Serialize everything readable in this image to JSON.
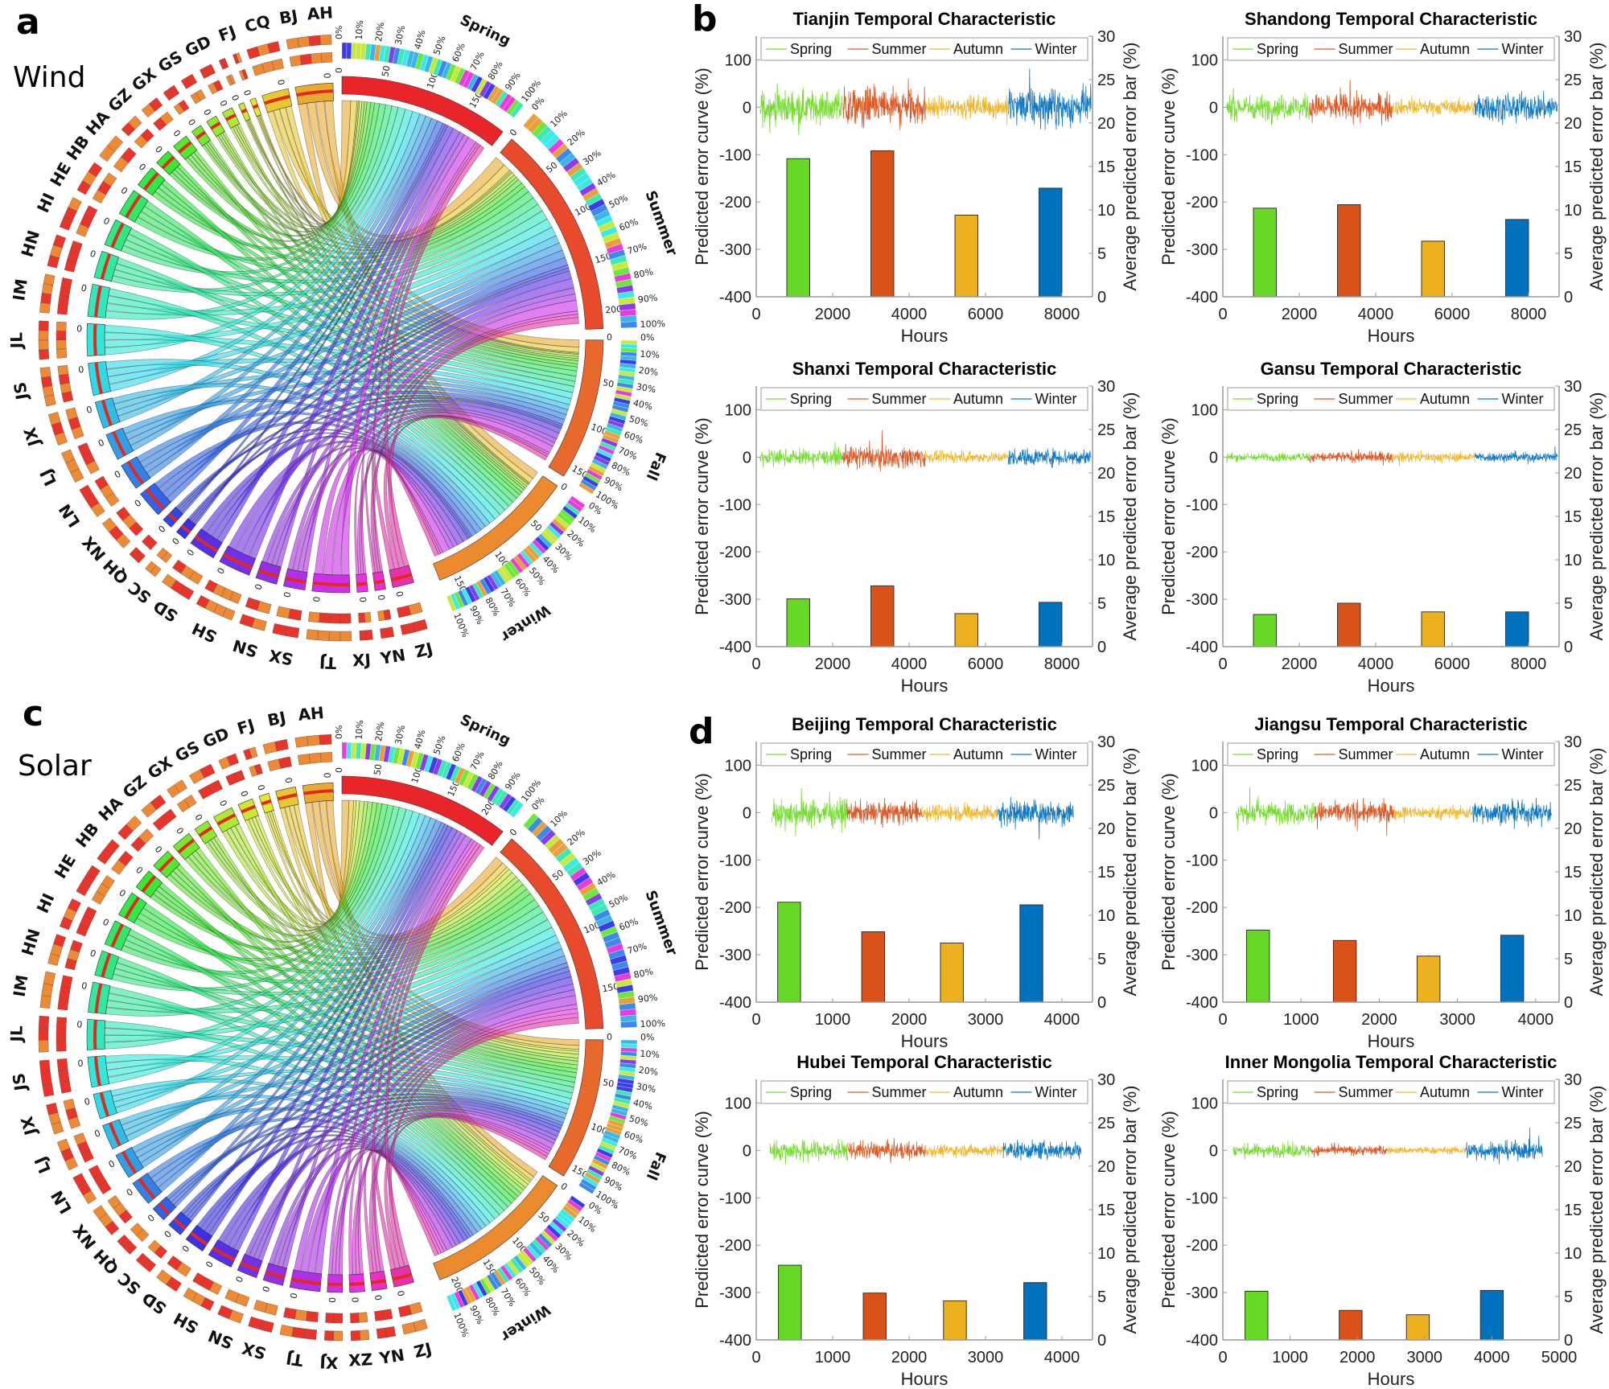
{
  "panels": {
    "a": "a",
    "b": "b",
    "c": "c",
    "d": "d"
  },
  "chord_diagrams": [
    {
      "name": "Wind",
      "regions": [
        "AH",
        "BJ",
        "CQ",
        "FJ",
        "GD",
        "GS",
        "GX",
        "GZ",
        "HA",
        "HB",
        "HE",
        "HI",
        "HN",
        "IM",
        "JL",
        "JS",
        "JX",
        "LJ",
        "LN",
        "NX",
        "QH",
        "SC",
        "SD",
        "SH",
        "SN",
        "SX",
        "TJ",
        "XJ",
        "YN",
        "ZJ"
      ],
      "region_weights": [
        7,
        5,
        1,
        1,
        2,
        2,
        2,
        3,
        3,
        4,
        5,
        5,
        5,
        6,
        6,
        6,
        5,
        5,
        5,
        5,
        2,
        2,
        5,
        6,
        4,
        4,
        7,
        2,
        2,
        4
      ],
      "region_tick_label": "0",
      "seasons": [
        {
          "label": "Spring",
          "scale_max": 190,
          "ticks": [
            "0",
            "50",
            "100",
            "150"
          ]
        },
        {
          "label": "Summer",
          "scale_max": 215,
          "ticks": [
            "0",
            "50",
            "100",
            "150",
            "200"
          ]
        },
        {
          "label": "Fall",
          "scale_max": 160,
          "ticks": [
            "0",
            "50",
            "100",
            "150"
          ]
        },
        {
          "label": "Winter",
          "scale_max": 165,
          "ticks": [
            "0",
            "50",
            "100",
            "150"
          ]
        }
      ],
      "percent_ticks": [
        "0%",
        "10%",
        "20%",
        "30%",
        "40%",
        "50%",
        "60%",
        "70%",
        "80%",
        "90%",
        "100%"
      ]
    },
    {
      "name": "Solar",
      "regions": [
        "AH",
        "BJ",
        "FJ",
        "GD",
        "GS",
        "GX",
        "GZ",
        "HA",
        "HB",
        "HE",
        "HI",
        "HN",
        "IM",
        "JL",
        "JS",
        "JX",
        "LJ",
        "LN",
        "NX",
        "QH",
        "SC",
        "SD",
        "SH",
        "SN",
        "SX",
        "TJ",
        "XJ",
        "XZ",
        "YN",
        "ZJ"
      ],
      "region_weights": [
        6,
        4,
        2,
        3,
        4,
        3,
        4,
        4,
        4,
        5,
        5,
        5,
        6,
        6,
        6,
        5,
        5,
        5,
        5,
        3,
        3,
        4,
        5,
        4,
        4,
        6,
        3,
        3,
        3,
        4
      ],
      "region_tick_label": "0",
      "seasons": [
        {
          "label": "Spring",
          "scale_max": 230,
          "ticks": [
            "0",
            "50",
            "100",
            "150",
            "200"
          ]
        },
        {
          "label": "Summer",
          "scale_max": 180,
          "ticks": [
            "0",
            "50",
            "100",
            "150"
          ]
        },
        {
          "label": "Fall",
          "scale_max": 160,
          "ticks": [
            "0",
            "50",
            "100",
            "150"
          ]
        },
        {
          "label": "Winter",
          "scale_max": 215,
          "ticks": [
            "0",
            "50",
            "100",
            "150",
            "200"
          ]
        }
      ],
      "percent_ticks": [
        "0%",
        "10%",
        "20%",
        "30%",
        "40%",
        "50%",
        "60%",
        "70%",
        "80%",
        "90%",
        "100%"
      ]
    }
  ],
  "colors": {
    "Spring": "#66d926",
    "Summer": "#d95319",
    "Autumn": "#edb120",
    "Winter": "#0072bd"
  },
  "chart_data": [
    {
      "type": "bar+line",
      "title": "Tianjin Temporal Characteristic",
      "xlabel": "Hours",
      "ylabel_left": "Predicted error curve (%)",
      "ylabel_right": "Average predicted error bar (%)",
      "xlim": [
        0,
        8800
      ],
      "xticks": [
        "0",
        "2000",
        "4000",
        "6000",
        "8000"
      ],
      "ylim_left": [
        -400,
        150
      ],
      "yticks_left": [
        "-400",
        "-300",
        "-200",
        "-100",
        "0",
        "100"
      ],
      "ylim_right": [
        0,
        30
      ],
      "yticks_right": [
        "0",
        "5",
        "10",
        "15",
        "20",
        "25",
        "30"
      ],
      "legend": [
        "Spring",
        "Summer",
        "Autumn",
        "Winter"
      ],
      "legend_position": "top",
      "curve_x_range": [
        100,
        8760
      ],
      "curve_amplitude": [
        55,
        65,
        35,
        60
      ],
      "bar_x": [
        1100,
        3300,
        5500,
        7700
      ],
      "bar_values": [
        15.9,
        16.8,
        9.4,
        12.5
      ]
    },
    {
      "type": "bar+line",
      "title": "Shandong Temporal Characteristic",
      "xlabel": "Hours",
      "ylabel_left": "Predicted error curve (%)",
      "ylabel_right": "Average predicted error bar (%)",
      "xlim": [
        0,
        8800
      ],
      "xticks": [
        "0",
        "2000",
        "4000",
        "6000",
        "8000"
      ],
      "ylim_left": [
        -400,
        150
      ],
      "yticks_left": [
        "-400",
        "-300",
        "-200",
        "-100",
        "0",
        "100"
      ],
      "ylim_right": [
        0,
        30
      ],
      "yticks_right": [
        "0",
        "5",
        "10",
        "15",
        "20",
        "25",
        "30"
      ],
      "legend": [
        "Spring",
        "Summer",
        "Autumn",
        "Winter"
      ],
      "legend_position": "top",
      "curve_x_range": [
        100,
        8760
      ],
      "curve_amplitude": [
        40,
        45,
        25,
        45
      ],
      "bar_x": [
        1100,
        3300,
        5500,
        7700
      ],
      "bar_values": [
        10.2,
        10.6,
        6.4,
        8.9
      ]
    },
    {
      "type": "bar+line",
      "title": "Shanxi Temporal Characteristic",
      "xlabel": "Hours",
      "ylabel_left": "Predicted error curve (%)",
      "ylabel_right": "Average predicted error bar (%)",
      "xlim": [
        0,
        8800
      ],
      "xticks": [
        "0",
        "2000",
        "4000",
        "6000",
        "8000"
      ],
      "ylim_left": [
        -400,
        150
      ],
      "yticks_left": [
        "-400",
        "-300",
        "-200",
        "-100",
        "0",
        "100"
      ],
      "ylim_right": [
        0,
        30
      ],
      "yticks_right": [
        "0",
        "5",
        "10",
        "15",
        "20",
        "25",
        "30"
      ],
      "legend": [
        "Spring",
        "Summer",
        "Autumn",
        "Winter"
      ],
      "legend_position": "top",
      "curve_x_range": [
        100,
        8760
      ],
      "curve_amplitude": [
        25,
        35,
        18,
        28
      ],
      "bar_x": [
        1100,
        3300,
        5500,
        7700
      ],
      "bar_values": [
        5.5,
        7.0,
        3.8,
        5.1
      ]
    },
    {
      "type": "bar+line",
      "title": "Gansu Temporal Characteristic",
      "xlabel": "Hours",
      "ylabel_left": "Predicted error curve (%)",
      "ylabel_right": "Average predicted error bar (%)",
      "xlim": [
        0,
        8800
      ],
      "xticks": [
        "0",
        "2000",
        "4000",
        "6000",
        "8000"
      ],
      "ylim_left": [
        -400,
        150
      ],
      "yticks_left": [
        "-400",
        "-300",
        "-200",
        "-100",
        "0",
        "100"
      ],
      "ylim_right": [
        0,
        30
      ],
      "yticks_right": [
        "0",
        "5",
        "10",
        "15",
        "20",
        "25",
        "30"
      ],
      "legend": [
        "Spring",
        "Summer",
        "Autumn",
        "Winter"
      ],
      "legend_position": "top",
      "curve_x_range": [
        100,
        8760
      ],
      "curve_amplitude": [
        14,
        18,
        16,
        16
      ],
      "bar_x": [
        1100,
        3300,
        5500,
        7700
      ],
      "bar_values": [
        3.7,
        5.0,
        4.0,
        4.0
      ]
    },
    {
      "type": "bar+line",
      "title": "Beijing Temporal Characteristic",
      "xlabel": "Hours",
      "ylabel_left": "Predicted error curve (%)",
      "ylabel_right": "Average predicted error bar (%)",
      "xlim": [
        0,
        4400
      ],
      "xticks": [
        "0",
        "1000",
        "2000",
        "3000",
        "4000"
      ],
      "ylim_left": [
        -400,
        150
      ],
      "yticks_left": [
        "-400",
        "-300",
        "-200",
        "-100",
        "0",
        "100"
      ],
      "ylim_right": [
        0,
        30
      ],
      "yticks_right": [
        "0",
        "5",
        "10",
        "15",
        "20",
        "25",
        "30"
      ],
      "legend": [
        "Spring",
        "Summer",
        "Autumn",
        "Winter"
      ],
      "legend_position": "top",
      "curve_x_range": [
        200,
        4150
      ],
      "curve_amplitude": [
        45,
        35,
        28,
        42
      ],
      "bar_x": [
        430,
        1530,
        2560,
        3600
      ],
      "bar_values": [
        11.5,
        8.1,
        6.8,
        11.2
      ]
    },
    {
      "type": "bar+line",
      "title": "Jiangsu Temporal Characteristic",
      "xlabel": "Hours",
      "ylabel_left": "Predicted error curve (%)",
      "ylabel_right": "Average predicted error bar (%)",
      "xlim": [
        0,
        4300
      ],
      "xticks": [
        "0",
        "1000",
        "2000",
        "3000",
        "4000"
      ],
      "ylim_left": [
        -400,
        150
      ],
      "yticks_left": [
        "-400",
        "-300",
        "-200",
        "-100",
        "0",
        "100"
      ],
      "ylim_right": [
        0,
        30
      ],
      "yticks_right": [
        "0",
        "5",
        "10",
        "15",
        "20",
        "25",
        "30"
      ],
      "legend": [
        "Spring",
        "Summer",
        "Autumn",
        "Winter"
      ],
      "legend_position": "top",
      "curve_x_range": [
        170,
        4200
      ],
      "curve_amplitude": [
        35,
        35,
        22,
        35
      ],
      "bar_x": [
        450,
        1560,
        2630,
        3700
      ],
      "bar_values": [
        8.3,
        7.1,
        5.3,
        7.7
      ]
    },
    {
      "type": "bar+line",
      "title": "Hubei Temporal Characteristic",
      "xlabel": "Hours",
      "ylabel_left": "Predicted error curve (%)",
      "ylabel_right": "Average predicted error bar (%)",
      "xlim": [
        0,
        4400
      ],
      "xticks": [
        "0",
        "1000",
        "2000",
        "3000",
        "4000"
      ],
      "ylim_left": [
        -400,
        150
      ],
      "yticks_left": [
        "-400",
        "-300",
        "-200",
        "-100",
        "0",
        "100"
      ],
      "ylim_right": [
        0,
        30
      ],
      "yticks_right": [
        "0",
        "5",
        "10",
        "15",
        "20",
        "25",
        "30"
      ],
      "legend": [
        "Spring",
        "Summer",
        "Autumn",
        "Winter"
      ],
      "legend_position": "top",
      "curve_x_range": [
        180,
        4250
      ],
      "curve_amplitude": [
        32,
        28,
        20,
        30
      ],
      "bar_x": [
        440,
        1550,
        2600,
        3650
      ],
      "bar_values": [
        8.6,
        5.4,
        4.5,
        6.6
      ]
    },
    {
      "type": "bar+line",
      "title": "Inner Mongolia Temporal Characteristic",
      "xlabel": "Hours",
      "ylabel_left": "Predicted error curve (%)",
      "ylabel_right": "Average predicted error bar (%)",
      "xlim": [
        0,
        5000
      ],
      "xticks": [
        "0",
        "1000",
        "2000",
        "3000",
        "4000",
        "5000"
      ],
      "ylim_left": [
        -400,
        150
      ],
      "yticks_left": [
        "-400",
        "-300",
        "-200",
        "-100",
        "0",
        "100"
      ],
      "ylim_right": [
        0,
        30
      ],
      "yticks_right": [
        "0",
        "5",
        "10",
        "15",
        "20",
        "25",
        "30"
      ],
      "legend": [
        "Spring",
        "Summer",
        "Autumn",
        "Winter"
      ],
      "legend_position": "top",
      "curve_x_range": [
        150,
        4750
      ],
      "curve_amplitude": [
        22,
        16,
        12,
        30
      ],
      "bar_x": [
        500,
        1900,
        2900,
        4000
      ],
      "bar_values": [
        5.6,
        3.4,
        2.9,
        5.7
      ]
    }
  ]
}
